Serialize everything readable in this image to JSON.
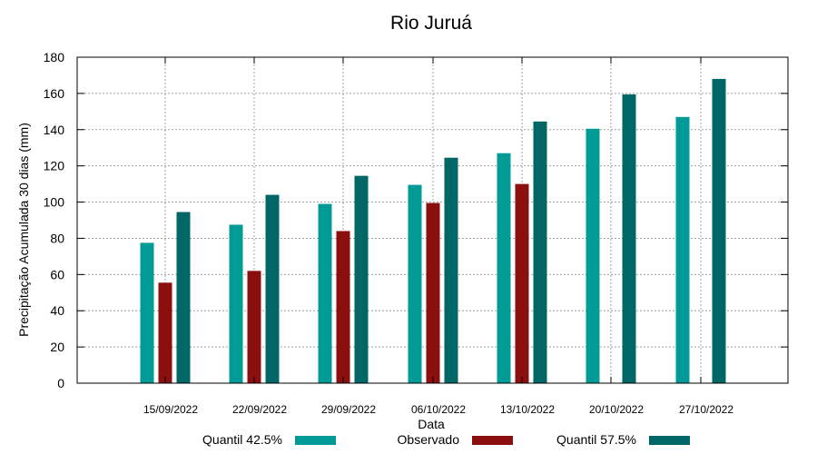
{
  "chart_data": {
    "type": "bar",
    "title": "Rio Juruá",
    "xlabel": "Data",
    "ylabel": "Precipitação Acumulada 30 dias (mm)",
    "ylim": [
      0,
      180
    ],
    "yticks": [
      0,
      20,
      40,
      60,
      80,
      100,
      120,
      140,
      160,
      180
    ],
    "grid": true,
    "legend_position": "bottom",
    "categories": [
      "15/09/2022",
      "22/09/2022",
      "29/09/2022",
      "06/10/2022",
      "13/10/2022",
      "20/10/2022",
      "27/10/2022"
    ],
    "series": [
      {
        "name": "Quantil 42.5%",
        "color": "#009b96",
        "values": [
          77.5,
          87.5,
          99,
          109.5,
          127,
          140.5,
          147
        ]
      },
      {
        "name": "Observado",
        "color": "#8b0f0f",
        "values": [
          55.5,
          62,
          84,
          99.5,
          110,
          null,
          null
        ]
      },
      {
        "name": "Quantil 57.5%",
        "color": "#006666",
        "values": [
          94.5,
          104,
          114.5,
          124.5,
          144.5,
          159.5,
          168
        ]
      }
    ]
  }
}
